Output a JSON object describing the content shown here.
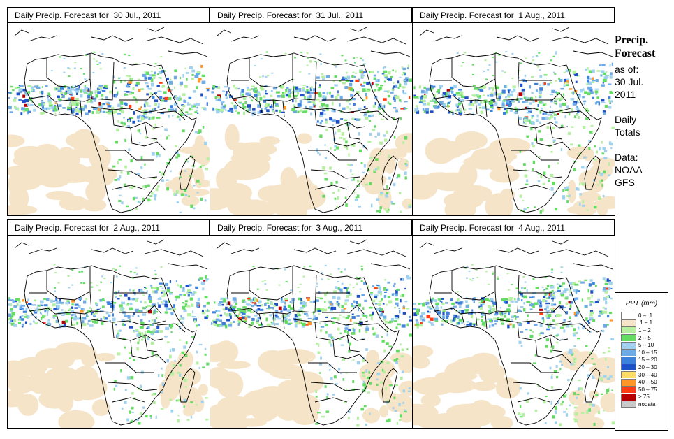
{
  "panels": [
    {
      "title": "Daily Precip. Forecast for  30 Jul., 2011",
      "rain_level": 0.8
    },
    {
      "title": "Daily Precip. Forecast for  31 Jul., 2011",
      "rain_level": 0.6
    },
    {
      "title": "Daily Precip. Forecast for  1 Aug., 2011",
      "rain_level": 0.8
    },
    {
      "title": "Daily Precip. Forecast for  2 Aug., 2011",
      "rain_level": 0.6
    },
    {
      "title": "Daily Precip. Forecast for  3 Aug., 2011",
      "rain_level": 0.7
    },
    {
      "title": "Daily Precip. Forecast for  4 Aug., 2011",
      "rain_level": 0.8
    }
  ],
  "side": {
    "line1": "Precip.",
    "line2": "Forecast",
    "line3": "as of:",
    "line4": "30 Jul.",
    "line5": "2011",
    "line6": "Daily",
    "line7": "Totals",
    "line8": "Data:",
    "line9": "NOAA–",
    "line10": "GFS"
  },
  "legend": {
    "title": "PPT (mm)",
    "entries": [
      {
        "label": "0 – .1",
        "color": "#ffffff"
      },
      {
        "label": ".1 – 1",
        "color": "#f5e4c8"
      },
      {
        "label": "1 – 2",
        "color": "#b4f0a0"
      },
      {
        "label": "2 – 5",
        "color": "#64dc64"
      },
      {
        "label": "5 – 10",
        "color": "#a0d2f0"
      },
      {
        "label": "10 – 15",
        "color": "#6eaae6"
      },
      {
        "label": "15 – 20",
        "color": "#3c82dc"
      },
      {
        "label": "20 – 30",
        "color": "#1e50c8"
      },
      {
        "label": "30 – 40",
        "color": "#ffdc64"
      },
      {
        "label": "40 – 50",
        "color": "#ff9628"
      },
      {
        "label": "50 – 75",
        "color": "#ff3c14"
      },
      {
        "label": "> 75",
        "color": "#b40000"
      },
      {
        "label": "nodata",
        "color": "#c8c8c8"
      }
    ]
  }
}
